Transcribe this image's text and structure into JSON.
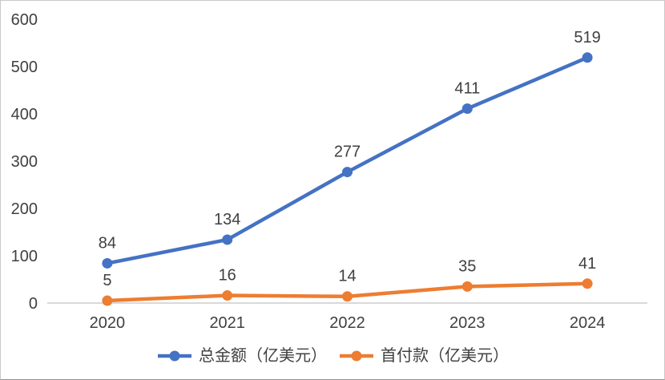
{
  "chart_data": {
    "type": "line",
    "title": "",
    "xlabel": "",
    "ylabel": "",
    "categories": [
      "2020",
      "2021",
      "2022",
      "2023",
      "2024"
    ],
    "series": [
      {
        "name": "总金额（亿美元）",
        "values": [
          84,
          134,
          277,
          411,
          519
        ],
        "color": "#4472C4"
      },
      {
        "name": "首付款（亿美元）",
        "values": [
          5,
          16,
          14,
          35,
          41
        ],
        "color": "#ED7D31"
      }
    ],
    "ylim": [
      0,
      600
    ],
    "yticks": [
      0,
      100,
      200,
      300,
      400,
      500,
      600
    ],
    "grid": false,
    "data_labels": true,
    "legend_position": "bottom",
    "axis_color": "#D9D9D9",
    "text_color": "#404040",
    "background_color": "#FFFFFF"
  }
}
